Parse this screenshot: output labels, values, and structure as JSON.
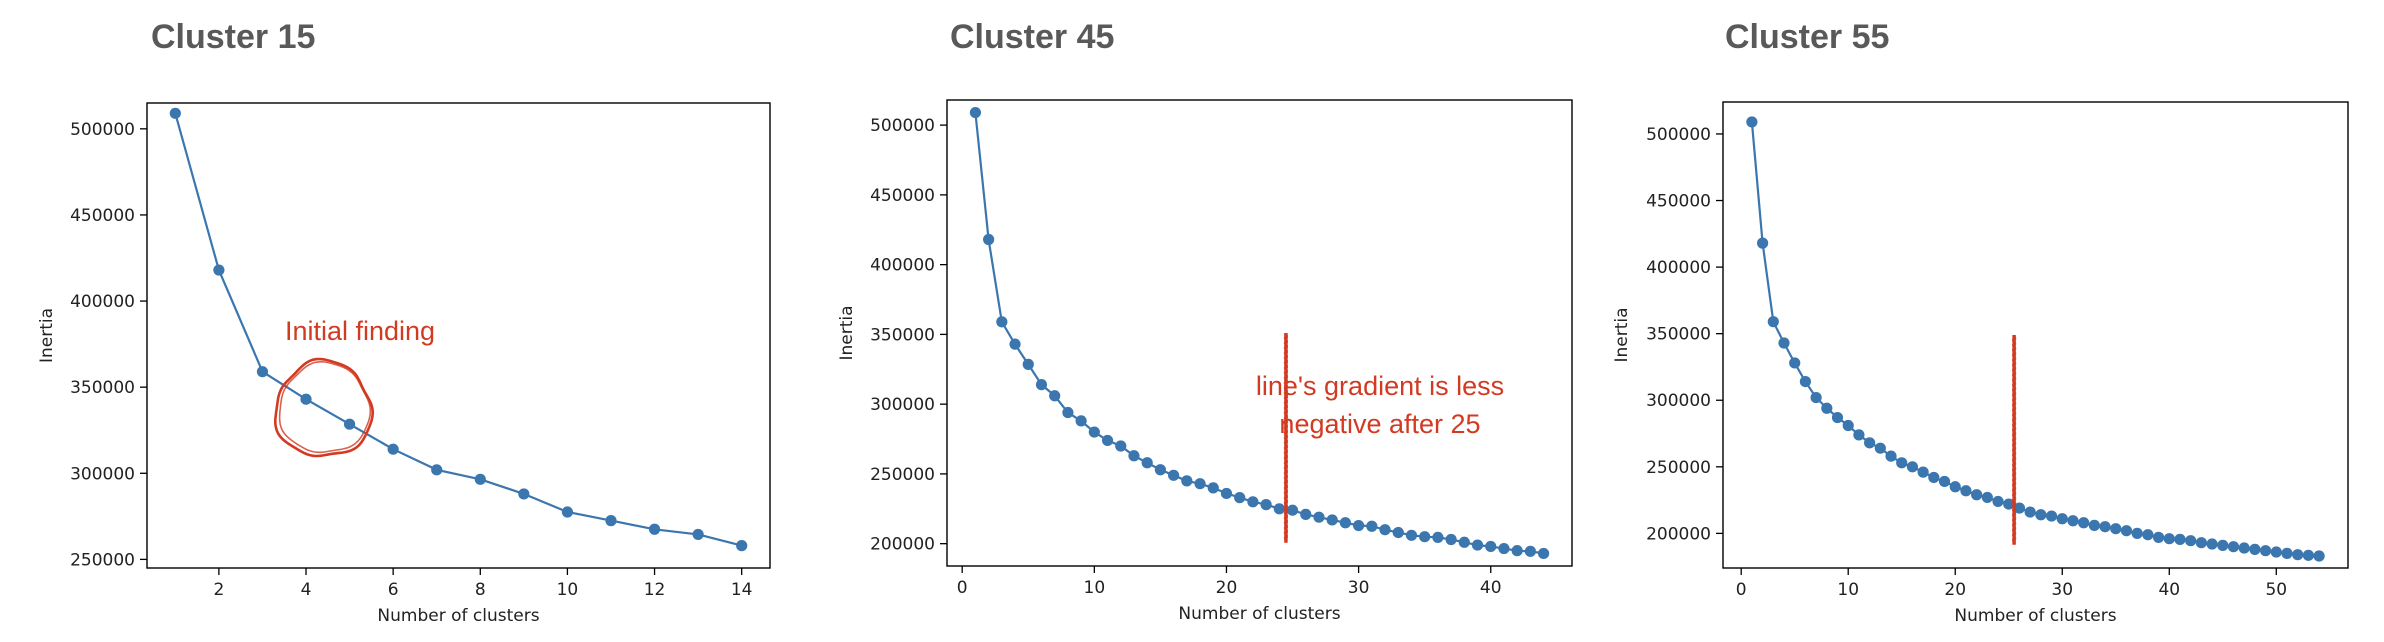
{
  "panels": [
    {
      "title": "Cluster 15"
    },
    {
      "title": "Cluster 45"
    },
    {
      "title": "Cluster 55"
    }
  ],
  "colors": {
    "line": "#3b76af",
    "marker": "#3b76af",
    "annotation": "#d23a22",
    "title": "#595959"
  },
  "chart_data": [
    {
      "type": "line",
      "title": "Cluster 15",
      "xlabel": "Number of clusters",
      "ylabel": "Inertia",
      "xlim": [
        0.35,
        14.65
      ],
      "ylim": [
        245000,
        515000
      ],
      "xticks": [
        2,
        4,
        6,
        8,
        10,
        12,
        14
      ],
      "yticks": [
        250000,
        300000,
        350000,
        400000,
        450000,
        500000
      ],
      "grid": false,
      "series": [
        {
          "x": [
            1,
            2,
            3,
            4,
            5,
            6,
            7,
            8,
            9,
            10,
            11,
            12,
            13,
            14
          ],
          "y": [
            509000,
            418000,
            359000,
            343000,
            328500,
            314000,
            302000,
            296500,
            288000,
            277500,
            272500,
            267500,
            264500,
            258000
          ]
        }
      ],
      "annotations": [
        {
          "type": "circle",
          "text": "Initial finding",
          "x": 4.4,
          "y": 337000
        }
      ]
    },
    {
      "type": "line",
      "title": "Cluster 45",
      "xlabel": "Number of clusters",
      "ylabel": "Inertia",
      "xlim": [
        -1.15,
        46.15
      ],
      "ylim": [
        184000,
        518000
      ],
      "xticks": [
        0,
        10,
        20,
        30,
        40
      ],
      "yticks": [
        200000,
        250000,
        300000,
        350000,
        400000,
        450000,
        500000
      ],
      "grid": false,
      "series": [
        {
          "x": [
            1,
            2,
            3,
            4,
            5,
            6,
            7,
            8,
            9,
            10,
            11,
            12,
            13,
            14,
            15,
            16,
            17,
            18,
            19,
            20,
            21,
            22,
            23,
            24,
            25,
            26,
            27,
            28,
            29,
            30,
            31,
            32,
            33,
            34,
            35,
            36,
            37,
            38,
            39,
            40,
            41,
            42,
            43,
            44
          ],
          "y": [
            509000,
            418000,
            359000,
            343000,
            328500,
            314000,
            306000,
            294000,
            288000,
            280000,
            274000,
            270000,
            263000,
            258000,
            253000,
            249000,
            245000,
            243000,
            240000,
            236000,
            233000,
            230000,
            228000,
            225000,
            224000,
            221000,
            219000,
            217000,
            215000,
            213000,
            212500,
            210000,
            208000,
            206000,
            205000,
            204500,
            203000,
            201000,
            199000,
            198000,
            196500,
            195000,
            194500,
            193000
          ]
        }
      ],
      "annotations": [
        {
          "type": "vline",
          "text": "line's gradient is less negative after 25",
          "x": 24.5
        }
      ]
    },
    {
      "type": "line",
      "title": "Cluster 55",
      "xlabel": "Number of clusters",
      "ylabel": "Inertia",
      "xlim": [
        -1.7,
        56.7
      ],
      "ylim": [
        174000,
        524000
      ],
      "xticks": [
        0,
        10,
        20,
        30,
        40,
        50
      ],
      "yticks": [
        200000,
        250000,
        300000,
        350000,
        400000,
        450000,
        500000
      ],
      "grid": false,
      "series": [
        {
          "x": [
            1,
            2,
            3,
            4,
            5,
            6,
            7,
            8,
            9,
            10,
            11,
            12,
            13,
            14,
            15,
            16,
            17,
            18,
            19,
            20,
            21,
            22,
            23,
            24,
            25,
            26,
            27,
            28,
            29,
            30,
            31,
            32,
            33,
            34,
            35,
            36,
            37,
            38,
            39,
            40,
            41,
            42,
            43,
            44,
            45,
            46,
            47,
            48,
            49,
            50,
            51,
            52,
            53,
            54
          ],
          "y": [
            509000,
            418000,
            359000,
            343000,
            328000,
            314000,
            302000,
            294000,
            287000,
            281000,
            274000,
            268000,
            264000,
            258000,
            253000,
            250000,
            246000,
            242000,
            239000,
            235000,
            232000,
            229000,
            227000,
            224000,
            222000,
            219000,
            216000,
            214000,
            213000,
            211000,
            209500,
            208000,
            206000,
            205000,
            203500,
            202000,
            200000,
            199000,
            197000,
            196000,
            195500,
            194500,
            193000,
            192000,
            191000,
            190000,
            189000,
            188000,
            187000,
            186000,
            185000,
            184000,
            183500,
            183000
          ]
        }
      ],
      "annotations": [
        {
          "type": "vline",
          "x": 25.5
        }
      ]
    }
  ]
}
